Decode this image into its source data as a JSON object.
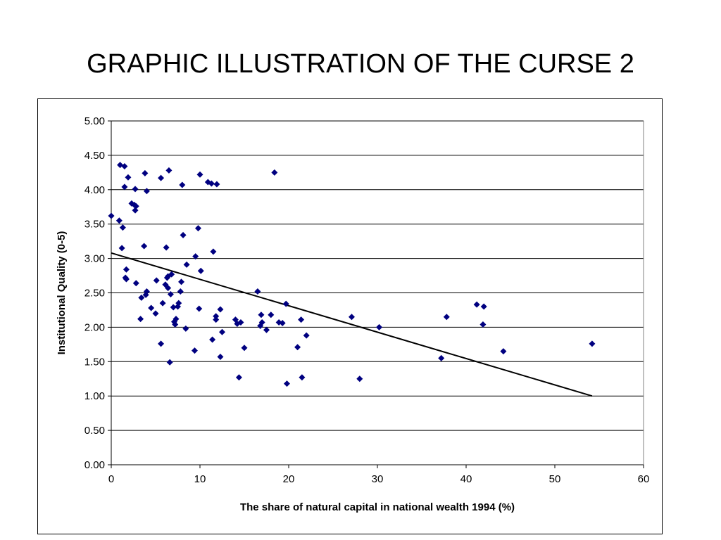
{
  "slide": {
    "title": "GRAPHIC ILLUSTRATION OF THE CURSE 2"
  },
  "chart_data": {
    "type": "scatter",
    "title": "",
    "xlabel": "The share of natural capital in national wealth 1994 (%)",
    "ylabel": "Institutional Quality (0-5)",
    "xlim": [
      0,
      60
    ],
    "ylim": [
      0,
      5
    ],
    "x_ticks": [
      "0",
      "10",
      "20",
      "30",
      "40",
      "50",
      "60"
    ],
    "y_ticks": [
      "0.00",
      "0.50",
      "1.00",
      "1.50",
      "2.00",
      "2.50",
      "3.00",
      "3.50",
      "4.00",
      "4.50",
      "5.00"
    ],
    "grid": "horizontal",
    "marker_color": "#000080",
    "trend_color": "#000000",
    "trendline": {
      "x": [
        0,
        54.2
      ],
      "y": [
        3.08,
        1.0
      ]
    },
    "points": [
      [
        0.0,
        3.62
      ],
      [
        0.9,
        3.55
      ],
      [
        1.0,
        4.36
      ],
      [
        1.2,
        3.15
      ],
      [
        1.3,
        3.45
      ],
      [
        1.5,
        4.34
      ],
      [
        1.5,
        4.04
      ],
      [
        1.6,
        2.72
      ],
      [
        1.7,
        2.7
      ],
      [
        1.7,
        2.84
      ],
      [
        1.9,
        4.18
      ],
      [
        2.3,
        3.8
      ],
      [
        2.6,
        3.78
      ],
      [
        2.7,
        4.01
      ],
      [
        2.7,
        3.7
      ],
      [
        2.8,
        3.76
      ],
      [
        2.8,
        2.64
      ],
      [
        3.3,
        2.12
      ],
      [
        3.4,
        2.43
      ],
      [
        3.7,
        3.18
      ],
      [
        3.8,
        4.24
      ],
      [
        3.9,
        2.47
      ],
      [
        4.0,
        3.98
      ],
      [
        4.0,
        2.52
      ],
      [
        4.5,
        2.28
      ],
      [
        5.0,
        2.2
      ],
      [
        5.1,
        2.68
      ],
      [
        5.6,
        1.76
      ],
      [
        5.6,
        4.17
      ],
      [
        5.8,
        2.35
      ],
      [
        6.1,
        2.62
      ],
      [
        6.2,
        3.16
      ],
      [
        6.3,
        2.72
      ],
      [
        6.4,
        2.57
      ],
      [
        6.4,
        2.74
      ],
      [
        6.5,
        4.28
      ],
      [
        6.6,
        1.49
      ],
      [
        6.7,
        2.48
      ],
      [
        6.8,
        2.77
      ],
      [
        7.0,
        2.29
      ],
      [
        7.1,
        2.08
      ],
      [
        7.2,
        2.04
      ],
      [
        7.3,
        2.12
      ],
      [
        7.5,
        2.3
      ],
      [
        7.6,
        2.35
      ],
      [
        7.8,
        2.52
      ],
      [
        7.9,
        2.66
      ],
      [
        8.0,
        4.07
      ],
      [
        8.1,
        3.34
      ],
      [
        8.4,
        1.98
      ],
      [
        8.5,
        2.91
      ],
      [
        9.4,
        1.66
      ],
      [
        9.5,
        3.03
      ],
      [
        9.8,
        3.44
      ],
      [
        9.9,
        2.27
      ],
      [
        10.0,
        4.22
      ],
      [
        10.1,
        2.82
      ],
      [
        10.9,
        4.11
      ],
      [
        11.3,
        4.09
      ],
      [
        11.4,
        1.82
      ],
      [
        11.5,
        3.1
      ],
      [
        11.8,
        2.16
      ],
      [
        11.8,
        2.11
      ],
      [
        11.9,
        4.08
      ],
      [
        12.3,
        1.57
      ],
      [
        12.3,
        2.26
      ],
      [
        12.5,
        1.93
      ],
      [
        14.0,
        2.11
      ],
      [
        14.2,
        2.05
      ],
      [
        14.4,
        1.27
      ],
      [
        14.6,
        2.07
      ],
      [
        15.0,
        1.7
      ],
      [
        16.5,
        2.52
      ],
      [
        16.8,
        2.02
      ],
      [
        16.9,
        2.18
      ],
      [
        17.0,
        2.07
      ],
      [
        17.5,
        1.96
      ],
      [
        18.0,
        2.18
      ],
      [
        18.4,
        4.25
      ],
      [
        18.9,
        2.07
      ],
      [
        19.3,
        2.06
      ],
      [
        19.7,
        2.34
      ],
      [
        19.8,
        1.18
      ],
      [
        21.0,
        1.71
      ],
      [
        21.4,
        2.11
      ],
      [
        21.5,
        1.27
      ],
      [
        22.0,
        1.88
      ],
      [
        27.1,
        2.15
      ],
      [
        28.0,
        1.25
      ],
      [
        30.2,
        2.0
      ],
      [
        37.2,
        1.55
      ],
      [
        37.8,
        2.15
      ],
      [
        41.2,
        2.33
      ],
      [
        41.9,
        2.04
      ],
      [
        42.0,
        2.3
      ],
      [
        44.2,
        1.65
      ],
      [
        54.2,
        1.76
      ]
    ]
  }
}
